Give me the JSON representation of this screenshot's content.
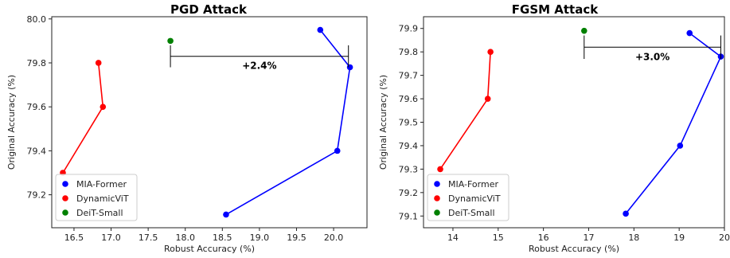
{
  "chart_data": [
    {
      "type": "line",
      "title": "PGD Attack",
      "xlabel": "Robust Accuracy (%)",
      "ylabel": "Original Accuracy (%)",
      "xlim": [
        16.2,
        20.45
      ],
      "ylim": [
        79.05,
        80.01
      ],
      "xticks": [
        "16.5",
        "17.0",
        "17.5",
        "18.0",
        "18.5",
        "19.0",
        "19.5",
        "20.0"
      ],
      "yticks": [
        "79.2",
        "79.4",
        "79.6",
        "79.8",
        "80.0"
      ],
      "legend_position": "lower-left",
      "series": [
        {
          "name": "MIA-Former",
          "color": "#0000ff",
          "connected": true,
          "x": [
            19.82,
            20.22,
            20.05,
            18.55
          ],
          "y": [
            79.95,
            79.78,
            79.4,
            79.11
          ]
        },
        {
          "name": "DynamicViT",
          "color": "#ff0000",
          "connected": true,
          "x": [
            16.83,
            16.89,
            16.35
          ],
          "y": [
            79.8,
            79.6,
            79.3
          ]
        },
        {
          "name": "DeiT-Small",
          "color": "#008000",
          "connected": false,
          "x": [
            17.8
          ],
          "y": [
            79.9
          ]
        }
      ],
      "annotation": {
        "text": "+2.4%",
        "x_from": 17.8,
        "x_to": 20.2,
        "y": 79.83,
        "cap_low": 79.78,
        "cap_high": 79.88
      }
    },
    {
      "type": "line",
      "title": "FGSM Attack",
      "xlabel": "Robust Accuracy (%)",
      "ylabel": "Original Accuracy (%)",
      "xlim": [
        13.35,
        20.0
      ],
      "ylim": [
        79.05,
        79.95
      ],
      "xticks": [
        "14",
        "15",
        "16",
        "17",
        "18",
        "19",
        "20"
      ],
      "yticks": [
        "79.1",
        "79.2",
        "79.3",
        "79.4",
        "79.5",
        "79.6",
        "79.7",
        "79.8",
        "79.9"
      ],
      "legend_position": "lower-left",
      "series": [
        {
          "name": "MIA-Former",
          "color": "#0000ff",
          "connected": true,
          "x": [
            19.23,
            19.92,
            19.02,
            17.82
          ],
          "y": [
            79.88,
            79.78,
            79.4,
            79.11
          ]
        },
        {
          "name": "DynamicViT",
          "color": "#ff0000",
          "connected": true,
          "x": [
            14.83,
            14.77,
            13.72
          ],
          "y": [
            79.8,
            79.6,
            79.3
          ]
        },
        {
          "name": "DeiT-Small",
          "color": "#008000",
          "connected": false,
          "x": [
            16.9
          ],
          "y": [
            79.89
          ]
        }
      ],
      "annotation": {
        "text": "+3.0%",
        "x_from": 16.9,
        "x_to": 19.92,
        "y": 79.82,
        "cap_low": 79.77,
        "cap_high": 79.87
      }
    }
  ]
}
